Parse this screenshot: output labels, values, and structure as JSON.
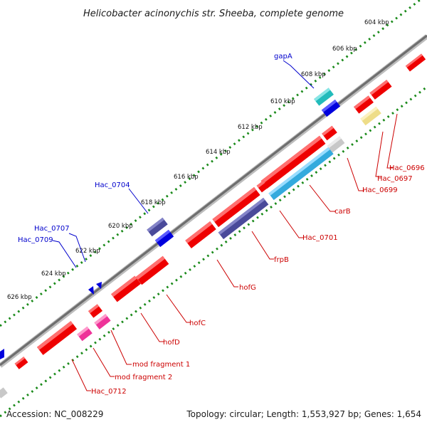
{
  "title": "Helicobacter acinonychis str. Sheeba, complete genome",
  "footer": {
    "accession": "Accession: NC_008229",
    "summary": "Topology: circular; Length: 1,553,927 bp; Genes: 1,654"
  },
  "scale_ticks": [
    "604 kbp",
    "606 kbp",
    "608 kbp",
    "610 kbp",
    "612 kbp",
    "614 kbp",
    "616 kbp",
    "618 kbp",
    "620 kbp",
    "622 kbp",
    "624 kbp",
    "626 kbp"
  ],
  "genes": [
    {
      "label": "gapA",
      "strand": "plus",
      "color": "#0000cc"
    },
    {
      "label": "Hac_0704",
      "strand": "plus",
      "color": "#0000cc"
    },
    {
      "label": "Hac_0707",
      "strand": "plus",
      "color": "#0000cc"
    },
    {
      "label": "Hac_0709",
      "strand": "plus",
      "color": "#0000cc"
    },
    {
      "label": "Hac_0696",
      "strand": "minus",
      "color": "#cc0000"
    },
    {
      "label": "Hac_0697",
      "strand": "minus",
      "color": "#cc0000"
    },
    {
      "label": "Hac_0699",
      "strand": "minus",
      "color": "#cc0000"
    },
    {
      "label": "carB",
      "strand": "minus",
      "color": "#cc0000"
    },
    {
      "label": "Hac_0701",
      "strand": "minus",
      "color": "#cc0000"
    },
    {
      "label": "frpB",
      "strand": "minus",
      "color": "#cc0000"
    },
    {
      "label": "hofG",
      "strand": "minus",
      "color": "#cc0000"
    },
    {
      "label": "hofC",
      "strand": "minus",
      "color": "#cc0000"
    },
    {
      "label": "hofD",
      "strand": "minus",
      "color": "#cc0000"
    },
    {
      "label": "mod fragment 1",
      "strand": "minus",
      "color": "#cc0000"
    },
    {
      "label": "mod fragment 2",
      "strand": "minus",
      "color": "#cc0000"
    },
    {
      "label": "Hac_0712",
      "strand": "minus",
      "color": "#cc0000"
    }
  ],
  "colors": {
    "backbone": "#8c8c8c",
    "scale_dots": "#1a8a1a",
    "plus_feature": "#0000dd",
    "minus_feature": "#ee0000",
    "teal_feature": "#22bbbb",
    "indigo_feature": "#4a4a9a",
    "sky_feature": "#33aadd",
    "pink_feature": "#ee3399",
    "khaki_feature": "#eedd88",
    "grey_feature": "#c8c8c8"
  }
}
